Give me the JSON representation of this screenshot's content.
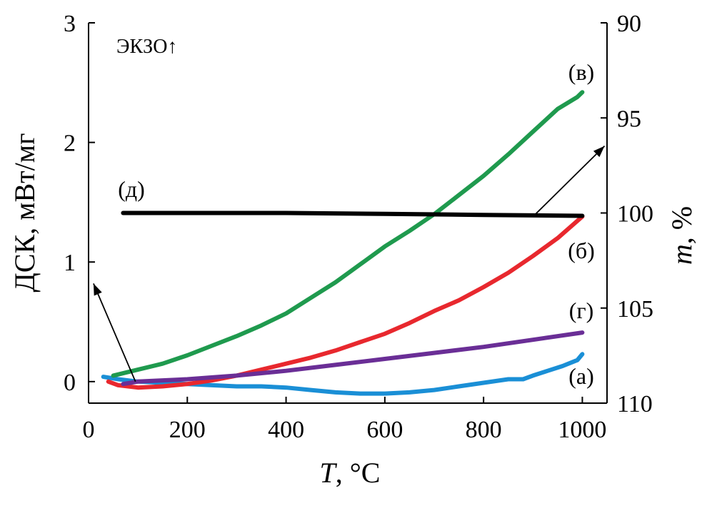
{
  "chart_data": {
    "type": "line",
    "x_title": "T, °C",
    "x_title_parts": {
      "var": "T",
      "unit": ", °C"
    },
    "y_left_title": "ДСК, мВт/мг",
    "y_right_title": "m, %",
    "y_right_title_parts": {
      "var": "m",
      "unit": ", %"
    },
    "exo_label": "ЭКЗО↑",
    "x_range": [
      0,
      1050
    ],
    "x_ticks": [
      0,
      200,
      400,
      600,
      800,
      1000
    ],
    "y_left_range": [
      -0.18,
      3.0
    ],
    "y_left_ticks": [
      0,
      1,
      2,
      3
    ],
    "y_right_range": [
      90,
      110
    ],
    "y_right_ticks": [
      90,
      95,
      100,
      105,
      110
    ],
    "y_right_inverted": true,
    "series": [
      {
        "label": "(а)",
        "axis": "left",
        "color": "#1a8fd6",
        "x": [
          30,
          60,
          100,
          150,
          200,
          250,
          300,
          350,
          400,
          450,
          500,
          550,
          600,
          650,
          700,
          750,
          800,
          850,
          880,
          900,
          930,
          960,
          990,
          1000
        ],
        "y": [
          0.04,
          0.02,
          0.0,
          -0.01,
          -0.02,
          -0.03,
          -0.04,
          -0.04,
          -0.05,
          -0.07,
          -0.09,
          -0.1,
          -0.1,
          -0.09,
          -0.07,
          -0.04,
          -0.01,
          0.02,
          0.02,
          0.05,
          0.09,
          0.13,
          0.18,
          0.23
        ]
      },
      {
        "label": "(б)",
        "axis": "left",
        "color": "#e8282e",
        "x": [
          40,
          60,
          100,
          150,
          200,
          250,
          300,
          350,
          400,
          450,
          500,
          550,
          600,
          650,
          700,
          750,
          800,
          850,
          900,
          950,
          1000
        ],
        "y": [
          0.0,
          -0.03,
          -0.05,
          -0.04,
          -0.02,
          0.01,
          0.05,
          0.1,
          0.15,
          0.2,
          0.26,
          0.33,
          0.4,
          0.49,
          0.59,
          0.68,
          0.79,
          0.91,
          1.05,
          1.2,
          1.38
        ]
      },
      {
        "label": "(в)",
        "axis": "left",
        "color": "#1f9a4e",
        "x": [
          50,
          100,
          150,
          200,
          250,
          300,
          350,
          400,
          450,
          500,
          550,
          600,
          650,
          700,
          750,
          800,
          850,
          900,
          950,
          990,
          1000
        ],
        "y": [
          0.05,
          0.1,
          0.15,
          0.22,
          0.3,
          0.38,
          0.47,
          0.57,
          0.7,
          0.83,
          0.98,
          1.13,
          1.26,
          1.4,
          1.56,
          1.72,
          1.9,
          2.09,
          2.28,
          2.38,
          2.42
        ]
      },
      {
        "label": "(г)",
        "axis": "left",
        "color": "#6a2e96",
        "x": [
          70,
          100,
          200,
          300,
          400,
          500,
          600,
          700,
          800,
          900,
          1000
        ],
        "y": [
          -0.02,
          0.0,
          0.02,
          0.05,
          0.09,
          0.14,
          0.19,
          0.24,
          0.29,
          0.35,
          0.41
        ]
      },
      {
        "label": "(д)",
        "axis": "right",
        "color": "#000000",
        "x": [
          70,
          200,
          400,
          600,
          800,
          1000
        ],
        "y": [
          100.0,
          100.0,
          100.0,
          100.05,
          100.1,
          100.15
        ]
      }
    ],
    "arrows": [
      {
        "target": "left-axis",
        "from_x": 95,
        "from_y": 0.0,
        "to_x": 10,
        "to_y": 0.82
      },
      {
        "target": "right-axis",
        "from_x": 905,
        "from_y": 1.4,
        "to_x": 1045,
        "to_y": 1.97
      }
    ]
  }
}
